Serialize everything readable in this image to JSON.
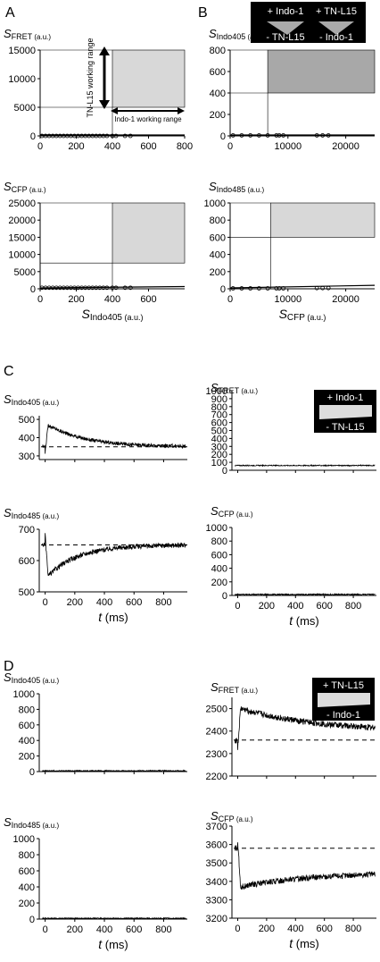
{
  "panels": {
    "A": "A",
    "B": "B",
    "C": "C",
    "D": "D"
  },
  "badges": {
    "A": {
      "top": "+ Indo-1",
      "bottom": "- TN-L15"
    },
    "B": {
      "top": "+ TN-L15",
      "bottom": "- Indo-1"
    },
    "C": {
      "top": "+ Indo-1",
      "bottom": "- TN-L15"
    },
    "D": {
      "top": "+ TN-L15",
      "bottom": "- Indo-1"
    }
  },
  "annotations": {
    "tn_range": "TN-L15 working range",
    "indo_range": "Indo-1 working range"
  },
  "chart_data": [
    {
      "id": "A1",
      "type": "scatter",
      "ylabel_main": "S",
      "ylabel_sub": "FRET",
      "ylabel_unit": " (a.u.)",
      "xlim": [
        0,
        800
      ],
      "ylim": [
        0,
        15000
      ],
      "xticks": [
        "0",
        "200",
        "400",
        "600",
        "800"
      ],
      "yticks": [
        "0",
        "5000",
        "10000",
        "15000"
      ],
      "threshold_x": 400,
      "threshold_y": 5000,
      "x": [
        10,
        30,
        50,
        70,
        90,
        110,
        130,
        150,
        170,
        190,
        210,
        230,
        250,
        270,
        290,
        310,
        330,
        350,
        370,
        400,
        420,
        470,
        500
      ],
      "y": [
        0,
        0,
        0,
        0,
        0,
        0,
        0,
        0,
        0,
        0,
        0,
        0,
        0,
        0,
        0,
        0,
        0,
        0,
        0,
        0,
        0,
        0,
        0
      ]
    },
    {
      "id": "A2",
      "type": "scatter",
      "ylabel_main": "S",
      "ylabel_sub": "CFP",
      "ylabel_unit": " (a.u.)",
      "xlabel_main": "S",
      "xlabel_sub": "Indo405",
      "xlabel_unit": " (a.u.)",
      "xlim": [
        0,
        800
      ],
      "ylim": [
        0,
        25000
      ],
      "xticks": [
        "0",
        "200",
        "400",
        "600"
      ],
      "yticks": [
        "0",
        "5000",
        "10000",
        "15000",
        "20000",
        "25000"
      ],
      "threshold_x": 400,
      "threshold_y": 7500,
      "x": [
        10,
        30,
        50,
        70,
        90,
        110,
        130,
        150,
        170,
        190,
        210,
        230,
        250,
        270,
        290,
        310,
        330,
        350,
        370,
        400,
        420,
        470,
        500
      ],
      "y": [
        300,
        300,
        300,
        300,
        300,
        300,
        300,
        300,
        300,
        300,
        300,
        300,
        300,
        300,
        300,
        300,
        300,
        300,
        300,
        300,
        300,
        300,
        300
      ]
    },
    {
      "id": "B1",
      "type": "scatter",
      "ylabel_main": "S",
      "ylabel_sub": "Indo405",
      "ylabel_unit": " (a.u.)",
      "xlim": [
        0,
        25000
      ],
      "ylim": [
        0,
        800
      ],
      "xticks": [
        "0",
        "10000",
        "20000"
      ],
      "yticks": [
        "0",
        "200",
        "400",
        "600",
        "800"
      ],
      "threshold_x": 6500,
      "threshold_y": 400,
      "x": [
        500,
        2000,
        3500,
        5000,
        6500,
        8000,
        8500,
        9200,
        15000,
        16000,
        17000
      ],
      "y": [
        5,
        5,
        5,
        5,
        5,
        5,
        5,
        5,
        5,
        5,
        5
      ]
    },
    {
      "id": "B2",
      "type": "scatter",
      "ylabel_main": "S",
      "ylabel_sub": "Indo485",
      "ylabel_unit": " (a.u.)",
      "xlabel_main": "S",
      "xlabel_sub": "CFP",
      "xlabel_unit": " (a.u.)",
      "xlim": [
        0,
        25000
      ],
      "ylim": [
        0,
        1000
      ],
      "xticks": [
        "0",
        "10000",
        "20000"
      ],
      "yticks": [
        "0",
        "200",
        "400",
        "600",
        "800",
        "1000"
      ],
      "threshold_x": 7000,
      "threshold_y": 600,
      "x": [
        500,
        2000,
        3500,
        5000,
        6500,
        8000,
        8500,
        9200,
        15000,
        16000,
        17000
      ],
      "y": [
        5,
        5,
        5,
        5,
        5,
        5,
        5,
        5,
        8,
        8,
        8
      ]
    },
    {
      "id": "C1",
      "type": "line",
      "ylabel_main": "S",
      "ylabel_sub": "Indo405",
      "ylabel_unit": " (a.u.)",
      "xlim": [
        -40,
        960
      ],
      "ylim": [
        280,
        520
      ],
      "xticks": [],
      "yticks": [
        "300",
        "400",
        "500"
      ],
      "baseline": 350,
      "trace": {
        "pre": 350,
        "drop": 320,
        "peak": 470,
        "plateau": 350,
        "tau": 250,
        "noise": 10
      }
    },
    {
      "id": "C2",
      "type": "line",
      "ylabel_main": "S",
      "ylabel_sub": "FRET",
      "ylabel_unit": " (a.u.)",
      "xlim": [
        -40,
        960
      ],
      "ylim": [
        0,
        1000
      ],
      "xticks": [],
      "yticks": [
        "0",
        "100",
        "200",
        "300",
        "400",
        "500",
        "600",
        "700",
        "800",
        "900",
        "1000"
      ],
      "trace": {
        "pre": 60,
        "drop": 60,
        "peak": 60,
        "plateau": 60,
        "tau": 200,
        "noise": 6
      }
    },
    {
      "id": "C3",
      "type": "line",
      "ylabel_main": "S",
      "ylabel_sub": "Indo485",
      "ylabel_unit": " (a.u.)",
      "xlabel_main": "t",
      "xlabel_unit": " (ms)",
      "xlim": [
        -40,
        960
      ],
      "ylim": [
        500,
        700
      ],
      "xticks": [
        "0",
        "200",
        "400",
        "600",
        "800"
      ],
      "yticks": [
        "500",
        "600",
        "700"
      ],
      "baseline": 650,
      "trace": {
        "pre": 650,
        "drop": 680,
        "peak": 550,
        "plateau": 650,
        "tau": 200,
        "noise": 8
      }
    },
    {
      "id": "C4",
      "type": "line",
      "ylabel_main": "S",
      "ylabel_sub": "CFP",
      "ylabel_unit": " (a.u.)",
      "xlabel_main": "t",
      "xlabel_unit": " (ms)",
      "xlim": [
        -40,
        960
      ],
      "ylim": [
        0,
        1000
      ],
      "xticks": [
        "0",
        "200",
        "400",
        "600",
        "800"
      ],
      "yticks": [
        "0",
        "200",
        "400",
        "600",
        "800",
        "1000"
      ],
      "trace": {
        "pre": 15,
        "drop": 15,
        "peak": 15,
        "plateau": 15,
        "tau": 200,
        "noise": 8
      }
    },
    {
      "id": "D1",
      "type": "line",
      "ylabel_main": "S",
      "ylabel_sub": "Indo405",
      "ylabel_unit": " (a.u.)",
      "xlim": [
        -40,
        960
      ],
      "ylim": [
        0,
        1000
      ],
      "xticks": [],
      "yticks": [
        "0",
        "200",
        "400",
        "600",
        "800",
        "1000"
      ],
      "trace": {
        "pre": 10,
        "drop": 10,
        "peak": 10,
        "plateau": 10,
        "tau": 200,
        "noise": 6
      }
    },
    {
      "id": "D2",
      "type": "line",
      "ylabel_main": "S",
      "ylabel_sub": "FRET",
      "ylabel_unit": " (a.u.)",
      "xlim": [
        -40,
        960
      ],
      "ylim": [
        2200,
        2550
      ],
      "xticks": [],
      "yticks": [
        "2200",
        "2300",
        "2400",
        "2500"
      ],
      "baseline": 2360,
      "trace": {
        "pre": 2360,
        "drop": 2320,
        "peak": 2500,
        "plateau": 2400,
        "tau": 500,
        "noise": 14
      }
    },
    {
      "id": "D3",
      "type": "line",
      "ylabel_main": "S",
      "ylabel_sub": "Indo485",
      "ylabel_unit": " (a.u.)",
      "xlabel_main": "t",
      "xlabel_unit": " (ms)",
      "xlim": [
        -40,
        960
      ],
      "ylim": [
        0,
        1000
      ],
      "xticks": [
        "0",
        "200",
        "400",
        "600",
        "800"
      ],
      "yticks": [
        "0",
        "200",
        "400",
        "600",
        "800",
        "1000"
      ],
      "trace": {
        "pre": 10,
        "drop": 10,
        "peak": 10,
        "plateau": 10,
        "tau": 200,
        "noise": 6
      }
    },
    {
      "id": "D4",
      "type": "line",
      "ylabel_main": "S",
      "ylabel_sub": "CFP",
      "ylabel_unit": " (a.u.)",
      "xlabel_main": "t",
      "xlabel_unit": " (ms)",
      "xlim": [
        -40,
        960
      ],
      "ylim": [
        3200,
        3700
      ],
      "xticks": [
        "0",
        "200",
        "400",
        "600",
        "800"
      ],
      "yticks": [
        "3200",
        "3300",
        "3400",
        "3500",
        "3600",
        "3700"
      ],
      "baseline": 3580,
      "trace": {
        "pre": 3580,
        "drop": 3620,
        "peak": 3370,
        "plateau": 3450,
        "tau": 500,
        "noise": 16
      }
    }
  ]
}
